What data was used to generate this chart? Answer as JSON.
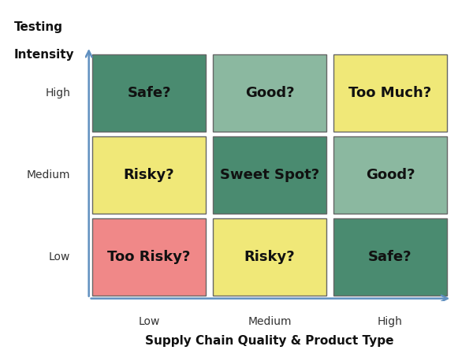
{
  "title_x": "Supply Chain Quality & Product Type",
  "title_y_line1": "Testing",
  "title_y_line2": "Intensity",
  "x_labels": [
    "Low",
    "Medium",
    "High"
  ],
  "y_labels": [
    "Low",
    "Medium",
    "High"
  ],
  "cell_texts": [
    [
      "Too Risky?",
      "Risky?",
      "Safe?"
    ],
    [
      "Risky?",
      "Sweet Spot?",
      "Good?"
    ],
    [
      "Safe?",
      "Good?",
      "Too Much?"
    ]
  ],
  "cell_colors": [
    [
      "#F08888",
      "#F0E878",
      "#4A8B70"
    ],
    [
      "#F0E878",
      "#4A8B70",
      "#8BB8A0"
    ],
    [
      "#4A8B70",
      "#8BB8A0",
      "#F0E878"
    ]
  ],
  "grid_color": "#666666",
  "axis_color": "#6090C0",
  "background_color": "#FFFFFF",
  "text_color": "#111111",
  "font_size": 13,
  "label_fontsize": 10,
  "title_fontsize": 11
}
